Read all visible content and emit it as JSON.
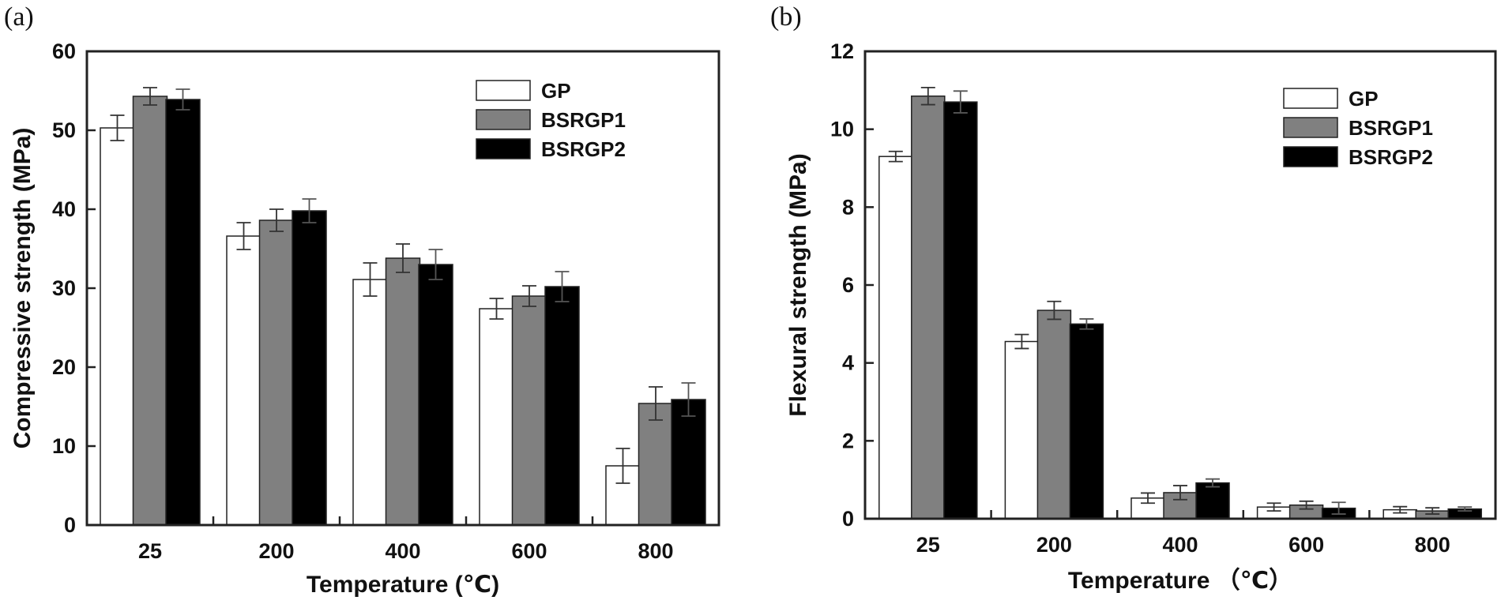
{
  "colors": {
    "GP": "#ffffff",
    "BSRGP1": "#808080",
    "BSRGP2": "#000000",
    "axis": "#222222"
  },
  "chart_data": [
    {
      "panel_label": "(a)",
      "type": "bar",
      "title": "",
      "xlabel": "Temperature (℃)",
      "ylabel": "Compressive strength (MPa)",
      "ylim": [
        0,
        60
      ],
      "yticks": [
        0,
        10,
        20,
        30,
        40,
        50,
        60
      ],
      "categories": [
        "25",
        "200",
        "400",
        "600",
        "800"
      ],
      "legend_position": "top-right",
      "series": [
        {
          "name": "GP",
          "values": [
            50.3,
            36.6,
            31.1,
            27.4,
            7.5
          ],
          "errors": [
            1.6,
            1.7,
            2.1,
            1.3,
            2.2
          ]
        },
        {
          "name": "BSRGP1",
          "values": [
            54.3,
            38.6,
            33.8,
            29.0,
            15.4
          ],
          "errors": [
            1.1,
            1.4,
            1.8,
            1.3,
            2.1
          ]
        },
        {
          "name": "BSRGP2",
          "values": [
            53.9,
            39.8,
            33.0,
            30.2,
            15.9
          ],
          "errors": [
            1.3,
            1.5,
            1.9,
            1.9,
            2.1
          ]
        }
      ]
    },
    {
      "panel_label": "(b)",
      "type": "bar",
      "title": "",
      "xlabel": "Temperature （℃）",
      "ylabel": "Flexural strength (MPa)",
      "ylim": [
        0,
        12
      ],
      "yticks": [
        0,
        2,
        4,
        6,
        8,
        10,
        12
      ],
      "categories": [
        "25",
        "200",
        "400",
        "600",
        "800"
      ],
      "legend_position": "top-right",
      "series": [
        {
          "name": "GP",
          "values": [
            9.3,
            4.55,
            0.53,
            0.3,
            0.23
          ],
          "errors": [
            0.13,
            0.18,
            0.13,
            0.1,
            0.08
          ]
        },
        {
          "name": "BSRGP1",
          "values": [
            10.85,
            5.35,
            0.67,
            0.35,
            0.2
          ],
          "errors": [
            0.22,
            0.23,
            0.18,
            0.1,
            0.08
          ]
        },
        {
          "name": "BSRGP2",
          "values": [
            10.7,
            5.0,
            0.92,
            0.27,
            0.25
          ],
          "errors": [
            0.28,
            0.13,
            0.1,
            0.15,
            0.05
          ]
        }
      ]
    }
  ]
}
